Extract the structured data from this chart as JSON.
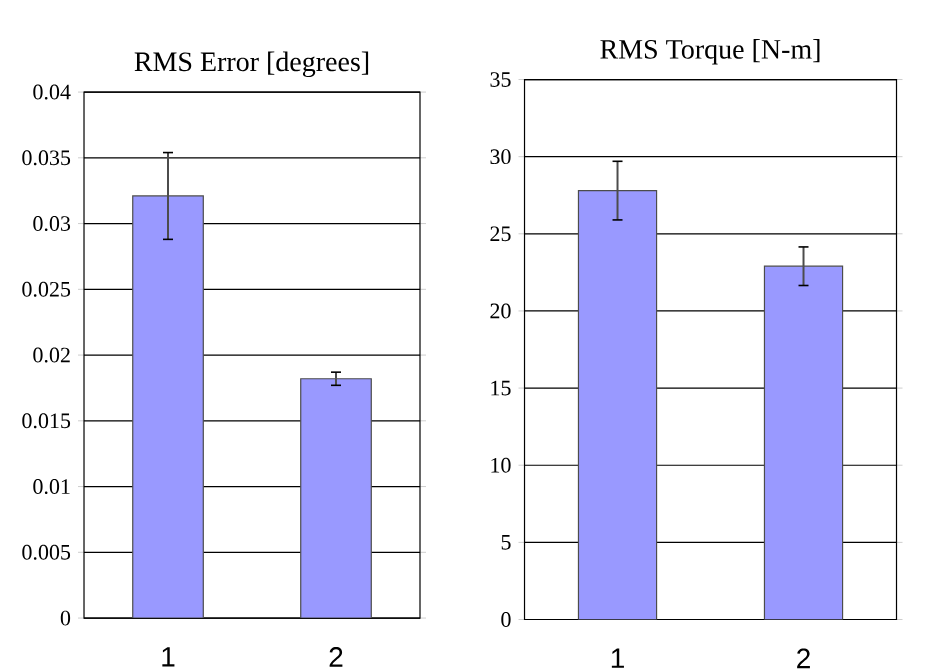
{
  "chart_data": [
    {
      "type": "bar",
      "title": "RMS Error [degrees]",
      "categories": [
        "1",
        "2"
      ],
      "values": [
        0.0321,
        0.0182
      ],
      "errors": [
        0.0033,
        0.0005
      ],
      "color": "#9999ff",
      "ylim": [
        0,
        0.04
      ],
      "yticks": [
        0,
        0.005,
        0.01,
        0.015,
        0.02,
        0.025,
        0.03,
        0.035,
        0.04
      ],
      "grid": "y"
    },
    {
      "type": "bar",
      "title": "RMS Torque [N-m]",
      "categories": [
        "1",
        "2"
      ],
      "values": [
        27.8,
        22.9
      ],
      "errors": [
        1.9,
        1.25
      ],
      "color": "#9999ff",
      "ylim": [
        0,
        35
      ],
      "yticks": [
        0,
        5,
        10,
        15,
        20,
        25,
        30,
        35
      ],
      "grid": "y"
    }
  ]
}
